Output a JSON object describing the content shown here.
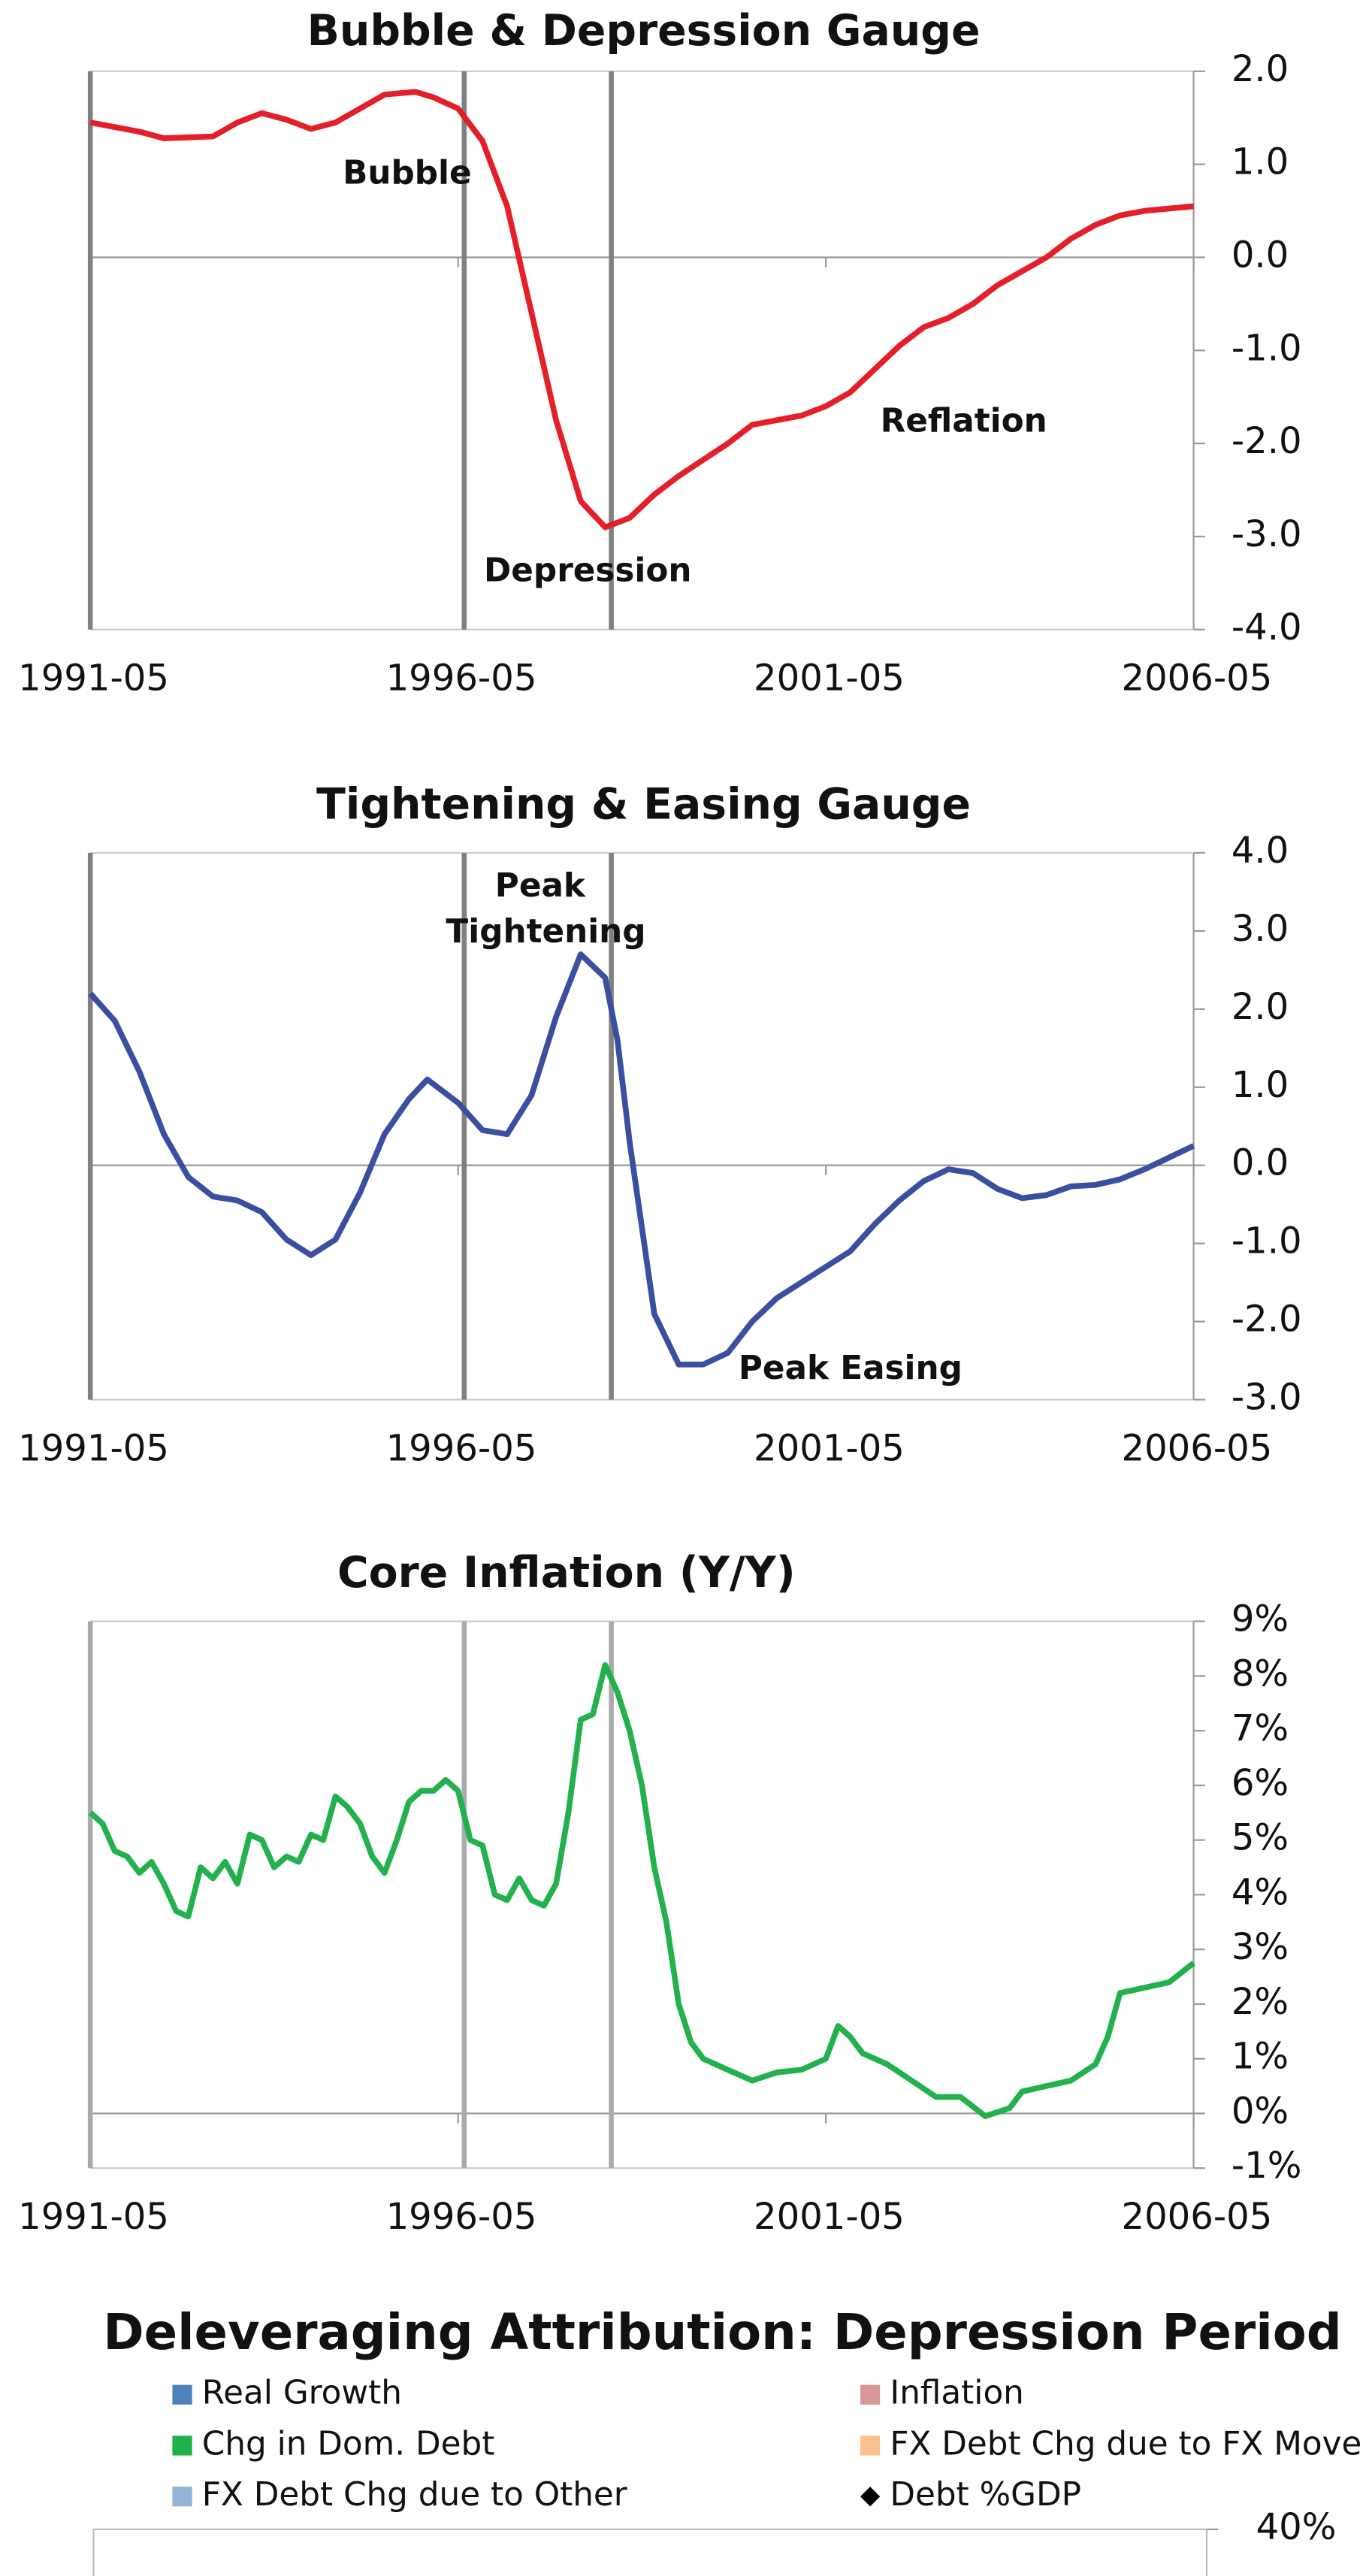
{
  "chart_data": [
    {
      "type": "line",
      "title": "Bubble & Depression Gauge",
      "color": "#e3202a",
      "x": [
        "1991-05",
        "1992-01",
        "1992-05",
        "1993-01",
        "1993-05",
        "1993-09",
        "1994-01",
        "1994-05",
        "1994-09",
        "1995-01",
        "1995-05",
        "1995-10",
        "1996-01",
        "1996-05",
        "1996-09",
        "1997-01",
        "1997-05",
        "1997-09",
        "1998-01",
        "1998-05",
        "1998-09",
        "1999-01",
        "1999-05",
        "2000-01",
        "2000-05",
        "2001-01",
        "2001-05",
        "2001-09",
        "2002-01",
        "2002-05",
        "2002-09",
        "2003-01",
        "2003-05",
        "2003-09",
        "2004-01",
        "2004-05",
        "2004-09",
        "2005-01",
        "2005-05",
        "2005-09",
        "2006-05"
      ],
      "values": [
        1.45,
        1.35,
        1.28,
        1.3,
        1.45,
        1.55,
        1.48,
        1.38,
        1.45,
        1.6,
        1.75,
        1.78,
        1.72,
        1.6,
        1.25,
        0.55,
        -0.6,
        -1.75,
        -2.62,
        -2.9,
        -2.8,
        -2.55,
        -2.35,
        -2.0,
        -1.8,
        -1.7,
        -1.6,
        -1.45,
        -1.2,
        -0.95,
        -0.75,
        -0.65,
        -0.5,
        -0.3,
        -0.15,
        0.0,
        0.2,
        0.35,
        0.45,
        0.5,
        0.55
      ],
      "xlim": [
        "1991-05",
        "2006-05"
      ],
      "xticks": [
        "1991-05",
        "1996-05",
        "2001-05",
        "2006-05"
      ],
      "ylim": [
        -4,
        2
      ],
      "yticks": [
        {
          "value": 2,
          "label": "2.0"
        },
        {
          "value": 1,
          "label": "1.0"
        },
        {
          "value": 0,
          "label": "0.0"
        },
        {
          "value": -1,
          "label": "-1.0"
        },
        {
          "value": -2,
          "label": "-2.0"
        },
        {
          "value": -3,
          "label": "-3.0"
        },
        {
          "value": -4,
          "label": "-4.0"
        }
      ],
      "vlines": [
        "1991-05",
        "1996-06",
        "1998-06"
      ],
      "vline_color": "#808080",
      "annotations": [
        "Bubble",
        "Depression",
        "Reflation"
      ]
    },
    {
      "type": "line",
      "title": "Tightening & Easing Gauge",
      "color": "#3a4fa0",
      "x": [
        "1991-05",
        "1991-09",
        "1992-01",
        "1992-05",
        "1992-09",
        "1993-01",
        "1993-05",
        "1993-09",
        "1994-01",
        "1994-05",
        "1994-09",
        "1995-01",
        "1995-05",
        "1995-09",
        "1995-12",
        "1996-05",
        "1996-09",
        "1997-01",
        "1997-05",
        "1997-09",
        "1998-01",
        "1998-05",
        "1998-07",
        "1998-09",
        "1998-11",
        "1999-01",
        "1999-05",
        "1999-09",
        "2000-01",
        "2000-05",
        "2000-09",
        "2001-01",
        "2001-05",
        "2001-09",
        "2002-01",
        "2002-05",
        "2002-09",
        "2003-01",
        "2003-05",
        "2003-09",
        "2004-01",
        "2004-05",
        "2004-09",
        "2005-01",
        "2005-05",
        "2005-09",
        "2006-05"
      ],
      "values": [
        2.2,
        1.85,
        1.2,
        0.4,
        -0.15,
        -0.4,
        -0.45,
        -0.6,
        -0.95,
        -1.15,
        -0.95,
        -0.35,
        0.4,
        0.85,
        1.1,
        0.8,
        0.45,
        0.4,
        0.9,
        1.9,
        2.7,
        2.4,
        1.6,
        0.3,
        -0.8,
        -1.9,
        -2.55,
        -2.55,
        -2.4,
        -2.0,
        -1.7,
        -1.5,
        -1.3,
        -1.1,
        -0.75,
        -0.45,
        -0.2,
        -0.05,
        -0.1,
        -0.3,
        -0.42,
        -0.38,
        -0.27,
        -0.25,
        -0.18,
        -0.05,
        0.25
      ],
      "xlim": [
        "1991-05",
        "2006-05"
      ],
      "xticks": [
        "1991-05",
        "1996-05",
        "2001-05",
        "2006-05"
      ],
      "ylim": [
        -3,
        4
      ],
      "yticks": [
        {
          "value": 4,
          "label": "4.0"
        },
        {
          "value": 3,
          "label": "3.0"
        },
        {
          "value": 2,
          "label": "2.0"
        },
        {
          "value": 1,
          "label": "1.0"
        },
        {
          "value": 0,
          "label": "0.0"
        },
        {
          "value": -1,
          "label": "-1.0"
        },
        {
          "value": -2,
          "label": "-2.0"
        },
        {
          "value": -3,
          "label": "-3.0"
        }
      ],
      "vlines": [
        "1991-05",
        "1996-06",
        "1998-06"
      ],
      "vline_color": "#808080",
      "annotations": [
        "Peak Tightening",
        "Peak Easing"
      ]
    },
    {
      "type": "line",
      "title": "Core Inflation (Y/Y)",
      "color": "#22b14c",
      "x": [
        "1991-05",
        "1991-07",
        "1991-09",
        "1991-11",
        "1992-01",
        "1992-03",
        "1992-05",
        "1992-07",
        "1992-09",
        "1992-11",
        "1993-01",
        "1993-03",
        "1993-05",
        "1993-07",
        "1993-09",
        "1993-11",
        "1994-01",
        "1994-03",
        "1994-05",
        "1994-07",
        "1994-09",
        "1994-11",
        "1995-01",
        "1995-03",
        "1995-05",
        "1995-07",
        "1995-09",
        "1995-11",
        "1996-01",
        "1996-03",
        "1996-05",
        "1996-07",
        "1996-09",
        "1996-11",
        "1997-01",
        "1997-03",
        "1997-05",
        "1997-07",
        "1997-09",
        "1997-11",
        "1998-01",
        "1998-03",
        "1998-05",
        "1998-07",
        "1998-09",
        "1998-11",
        "1999-01",
        "1999-03",
        "1999-05",
        "1999-07",
        "1999-09",
        "2000-01",
        "2000-05",
        "2000-09",
        "2001-01",
        "2001-05",
        "2001-07",
        "2001-09",
        "2001-11",
        "2002-03",
        "2002-07",
        "2002-11",
        "2003-03",
        "2003-07",
        "2003-11",
        "2004-01",
        "2004-05",
        "2004-09",
        "2005-01",
        "2005-03",
        "2005-05",
        "2005-09",
        "2006-01",
        "2006-05"
      ],
      "values": [
        5.5,
        5.3,
        4.8,
        4.7,
        4.4,
        4.6,
        4.2,
        3.7,
        3.6,
        4.5,
        4.3,
        4.6,
        4.2,
        5.1,
        5.0,
        4.5,
        4.7,
        4.6,
        5.1,
        5.0,
        5.8,
        5.6,
        5.3,
        4.7,
        4.4,
        5.0,
        5.7,
        5.9,
        5.9,
        6.1,
        5.9,
        5.0,
        4.9,
        4.0,
        3.9,
        4.3,
        3.9,
        3.8,
        4.2,
        5.5,
        7.2,
        7.3,
        8.2,
        7.7,
        7.0,
        6.0,
        4.5,
        3.5,
        2.0,
        1.3,
        1.0,
        0.8,
        0.6,
        0.75,
        0.8,
        1.0,
        1.6,
        1.4,
        1.1,
        0.9,
        0.6,
        0.3,
        0.3,
        -0.05,
        0.1,
        0.4,
        0.5,
        0.6,
        0.9,
        1.4,
        2.2,
        2.3,
        2.4,
        2.75
      ],
      "xlim": [
        "1991-05",
        "2006-05"
      ],
      "xticks": [
        "1991-05",
        "1996-05",
        "2001-05",
        "2006-05"
      ],
      "ylim": [
        -1,
        9
      ],
      "yticks": [
        {
          "value": 9,
          "label": "9%"
        },
        {
          "value": 8,
          "label": "8%"
        },
        {
          "value": 7,
          "label": "7%"
        },
        {
          "value": 6,
          "label": "6%"
        },
        {
          "value": 5,
          "label": "5%"
        },
        {
          "value": 4,
          "label": "4%"
        },
        {
          "value": 3,
          "label": "3%"
        },
        {
          "value": 2,
          "label": "2%"
        },
        {
          "value": 1,
          "label": "1%"
        },
        {
          "value": 0,
          "label": "0%"
        },
        {
          "value": -1,
          "label": "-1%"
        }
      ],
      "vlines": [
        "1991-05",
        "1996-06",
        "1998-06"
      ],
      "vline_color": "#aaaaaa",
      "annotations": []
    },
    {
      "type": "bar",
      "title": "Deleveraging Attribution: Depression Period",
      "series": [
        {
          "name": "Real Growth",
          "color": "#4f81bd"
        },
        {
          "name": "Inflation",
          "color": "#d99694"
        },
        {
          "name": "Chg in Dom. Debt",
          "color": "#1fb24a"
        },
        {
          "name": "FX Debt Chg due to FX Move",
          "color": "#fac08f"
        },
        {
          "name": "FX Debt Chg due to Other",
          "color": "#95b3d7"
        },
        {
          "name": "Debt %GDP",
          "color": "#000000",
          "type": "scatter"
        }
      ],
      "yticks": [
        {
          "value": 40,
          "label": "40%"
        }
      ]
    }
  ]
}
